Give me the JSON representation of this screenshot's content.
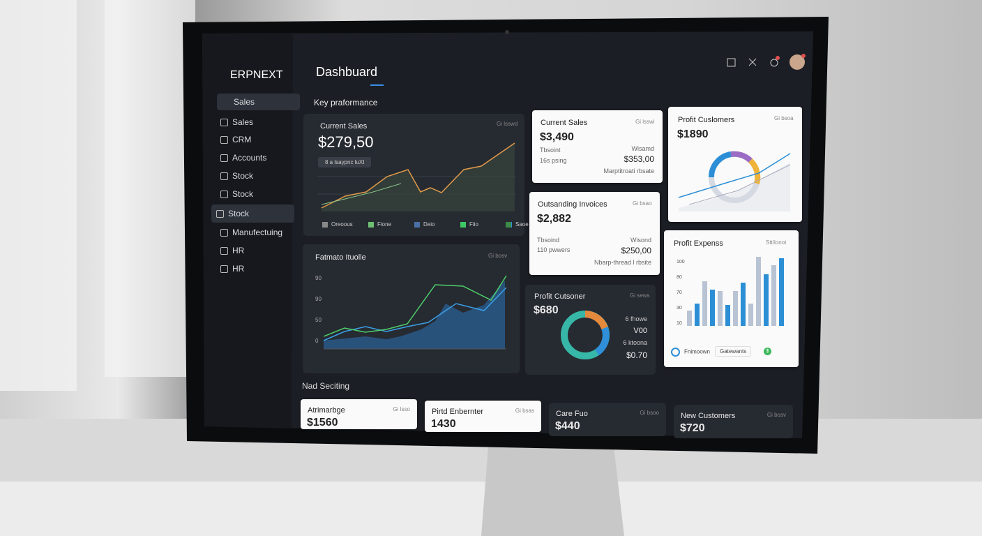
{
  "sidebar": {
    "brand": "ERPNEXT",
    "section": "Sales",
    "items": [
      "Sales",
      "CRM",
      "Accounts",
      "Stock",
      "Stock",
      "Stock",
      "Manufectuing",
      "HR",
      "HR"
    ]
  },
  "header": {
    "title": "Dashbuard"
  },
  "section_title": "Key praformance",
  "sales_chart": {
    "title": "Current Sales",
    "tag": "Gi lsswd",
    "value": "$279,50",
    "pill": "8 a lsaypnc luXI",
    "legend": [
      "Oreoous",
      "Fione",
      "Deio",
      "Fiio",
      "Saoe"
    ]
  },
  "area_chart": {
    "title": "Fatmato Ituolle",
    "tag": "Gi bosv",
    "y_labels": [
      "90",
      "90",
      "50",
      "0"
    ]
  },
  "current_sales": {
    "title": "Current Sales",
    "tag": "Gi lsswi",
    "value": "$3,490",
    "left": [
      "Tbsoint",
      "16s psing"
    ],
    "right": [
      "Wisamd",
      "$353,00"
    ],
    "note": "Marptitroati rbsate"
  },
  "outstanding": {
    "title": "Outsanding Invoices",
    "tag": "Gi bsao",
    "value": "$2,882",
    "left": [
      "Tbsoind",
      "110 pwwers"
    ],
    "right": [
      "Wisond",
      "$250,00"
    ],
    "note": "Nbarp-thread l rbsite"
  },
  "profit_customers": {
    "title": "Profit Cuslomers",
    "tag": "Gi bsoa",
    "value": "$1890"
  },
  "profit_customer_donut": {
    "title": "Profit Cutsoner",
    "tag": "Gi sews",
    "value": "$680",
    "labels": [
      "6 fhowe",
      "V00",
      "6 ktoona",
      "$0.70"
    ]
  },
  "profit_expense": {
    "title": "Profit Expenss",
    "tag": "Stt/lonot",
    "y_labels": [
      "100",
      "80",
      "70",
      "30",
      "10"
    ],
    "footer": [
      "Fnimoown",
      "Gatewants",
      "$"
    ]
  },
  "bottom_title": "Nad Seciting",
  "bottom_cards": [
    {
      "title": "Atrimarbge",
      "tag": "Gi lsso",
      "value": "$1560"
    },
    {
      "title": "Pirtd Enbernter",
      "tag": "Gi bsas",
      "value": "1430"
    },
    {
      "title": "Care Fuo",
      "tag": "Gi bsoo",
      "value": "$440"
    },
    {
      "title": "New Customers",
      "tag": "Gi bosv",
      "value": "$720"
    }
  ]
}
